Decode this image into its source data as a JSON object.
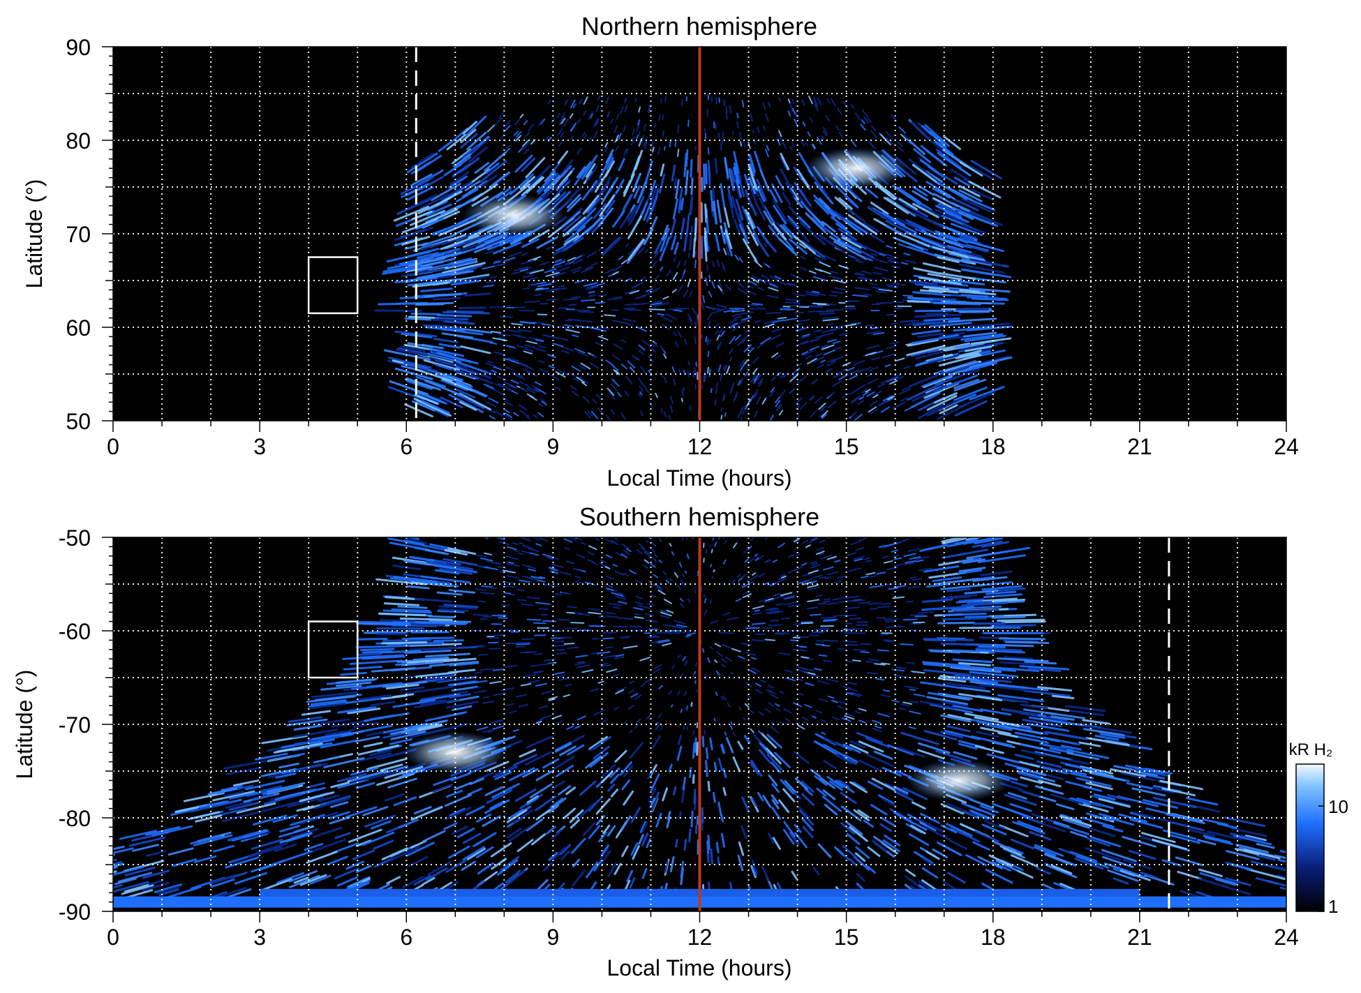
{
  "colors": {
    "background": "#000000",
    "aurora_dark": "#0a2a8c",
    "aurora_mid": "#1f6fff",
    "aurora_light": "#7fc3ff",
    "aurora_bright": "#ecf6ff",
    "noon_line": "#c0381c",
    "grid": "#ffffff",
    "box": "#ffffff"
  },
  "chart_data": [
    {
      "type": "heatmap",
      "title": "Northern hemisphere",
      "xlabel": "Local Time (hours)",
      "ylabel": "Latitude (°)",
      "xlim": [
        0,
        24
      ],
      "ylim": [
        50,
        90
      ],
      "xticks": [
        "0",
        "3",
        "6",
        "9",
        "12",
        "15",
        "18",
        "21",
        "24"
      ],
      "yticks": [
        "50",
        "60",
        "70",
        "80",
        "90"
      ],
      "grid": true,
      "noon_line_lt": 12,
      "dashed_line_lt": 6.2,
      "box": {
        "lt": [
          4,
          5
        ],
        "lat": [
          61.5,
          67.5
        ]
      },
      "emission_region": {
        "lt_min": 6.3,
        "lt_max": 17.6,
        "lat_max": 85
      },
      "bright_spots": [
        {
          "lt": 8.2,
          "lat": 72
        },
        {
          "lt": 15.2,
          "lat": 77
        }
      ]
    },
    {
      "type": "heatmap",
      "title": "Southern hemisphere",
      "xlabel": "Local Time (hours)",
      "ylabel": "Latitude (°)",
      "xlim": [
        0,
        24
      ],
      "ylim": [
        -90,
        -50
      ],
      "xticks": [
        "0",
        "3",
        "6",
        "9",
        "12",
        "15",
        "18",
        "21",
        "24"
      ],
      "yticks": [
        "-50",
        "-60",
        "-70",
        "-80",
        "-90"
      ],
      "grid": true,
      "noon_line_lt": 12,
      "dashed_line_lt": 21.6,
      "box": {
        "lt": [
          4,
          5
        ],
        "lat": [
          -65,
          -59
        ]
      },
      "emission_region": {
        "lt_min": 5.8,
        "lt_max": 18.2,
        "lat_min": -90
      },
      "bright_spots": [
        {
          "lt": 7.0,
          "lat": -73
        },
        {
          "lt": 17.3,
          "lat": -76
        }
      ]
    }
  ],
  "colorbar": {
    "label": "kR H₂",
    "ticks": [
      "1",
      "10"
    ],
    "range": [
      1,
      25
    ],
    "scale": "log"
  }
}
